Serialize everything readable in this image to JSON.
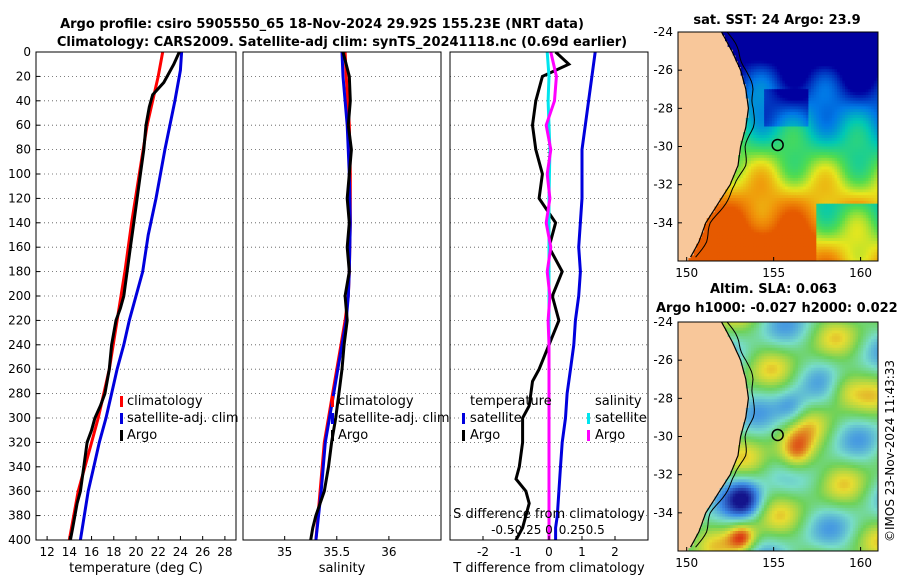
{
  "header": {
    "title_line1": "Argo profile: csiro 5905550_65 18-Nov-2024 29.92S 155.23E (NRT data)",
    "title_line2": "Climatology: CARS2009. Satellite-adj clim: synTS_20241118.nc (0.69d earlier)"
  },
  "colors": {
    "climatology": "#ff0000",
    "satellite": "#0000dd",
    "argo": "#000000",
    "salinity_satellite": "#00e5ee",
    "salinity_argo": "#ff00ff",
    "land": "#f8c79a"
  },
  "chart_data": [
    {
      "id": "temperature",
      "type": "line",
      "xlabel": "temperature (deg C)",
      "ylabel": "",
      "xlim": [
        11,
        29
      ],
      "ylim": [
        400,
        0
      ],
      "xticks": [
        12,
        14,
        16,
        18,
        20,
        22,
        24,
        26,
        28
      ],
      "yticks": [
        0,
        20,
        40,
        60,
        80,
        100,
        120,
        140,
        160,
        180,
        200,
        220,
        240,
        260,
        280,
        300,
        320,
        340,
        360,
        380,
        400
      ],
      "legend": [
        "climatology",
        "satellite-adj. clim",
        "Argo"
      ],
      "legend_loc": "lower-right",
      "series": [
        {
          "name": "climatology",
          "color": "#ff0000",
          "x": [
            22.4,
            22.0,
            21.0,
            20.3,
            19.6,
            19.0,
            18.3,
            17.6,
            17.1,
            16.6,
            16.0,
            15.4,
            14.8,
            14.0
          ],
          "y": [
            0,
            20,
            60,
            100,
            140,
            180,
            220,
            260,
            280,
            300,
            320,
            340,
            360,
            400
          ]
        },
        {
          "name": "satellite-adj. clim",
          "color": "#0000dd",
          "x": [
            24.1,
            24.0,
            23.5,
            22.6,
            21.8,
            21.1,
            20.6,
            20.0,
            19.4,
            18.9,
            18.3,
            17.8,
            17.3,
            16.7,
            16.2,
            15.7,
            15.0
          ],
          "y": [
            0,
            15,
            40,
            80,
            120,
            150,
            180,
            200,
            220,
            240,
            260,
            280,
            300,
            320,
            340,
            360,
            400
          ]
        },
        {
          "name": "Argo",
          "color": "#000000",
          "x": [
            23.9,
            23.4,
            22.5,
            21.5,
            21.2,
            20.9,
            20.7,
            20.4,
            20.1,
            19.8,
            19.5,
            19.2,
            18.9,
            18.6,
            18.2,
            17.8,
            17.6,
            17.2,
            16.8,
            16.3,
            16.0,
            15.6,
            15.3,
            15.0,
            14.7,
            14.3,
            14.1
          ],
          "y": [
            0,
            10,
            25,
            35,
            45,
            60,
            80,
            100,
            120,
            140,
            160,
            180,
            200,
            210,
            220,
            240,
            260,
            280,
            290,
            300,
            310,
            320,
            340,
            360,
            370,
            390,
            400
          ]
        }
      ]
    },
    {
      "id": "salinity",
      "type": "line",
      "xlabel": "salinity",
      "ylabel": "",
      "xlim": [
        34.6,
        36.5
      ],
      "ylim": [
        400,
        0
      ],
      "xticks": [
        35,
        35.5,
        36
      ],
      "xtick_labels": [
        "35",
        "35.5",
        "36"
      ],
      "legend": [
        "climatology",
        "satellite-adj. clim",
        "Argo"
      ],
      "legend_loc": "lower-right",
      "series": [
        {
          "name": "climatology",
          "color": "#ff0000",
          "x": [
            35.58,
            35.59,
            35.62,
            35.63,
            35.63,
            35.62,
            35.61,
            35.58,
            35.54,
            35.5,
            35.46,
            35.42,
            35.38,
            35.34,
            35.3
          ],
          "y": [
            0,
            20,
            60,
            100,
            140,
            180,
            200,
            220,
            240,
            260,
            280,
            300,
            320,
            360,
            400
          ]
        },
        {
          "name": "satellite-adj. clim",
          "color": "#0000dd",
          "x": [
            35.55,
            35.56,
            35.6,
            35.62,
            35.63,
            35.62,
            35.61,
            35.59,
            35.55,
            35.51,
            35.47,
            35.43,
            35.39,
            35.35,
            35.3
          ],
          "y": [
            0,
            20,
            60,
            100,
            140,
            180,
            200,
            220,
            240,
            260,
            280,
            300,
            320,
            360,
            400
          ]
        },
        {
          "name": "Argo",
          "color": "#000000",
          "x": [
            35.56,
            35.62,
            35.63,
            35.61,
            35.64,
            35.62,
            35.6,
            35.62,
            35.6,
            35.62,
            35.58,
            35.6,
            35.57,
            35.55,
            35.52,
            35.49,
            35.45,
            35.42,
            35.38,
            35.34,
            35.3,
            35.27,
            35.25
          ],
          "y": [
            0,
            20,
            40,
            60,
            80,
            100,
            120,
            140,
            160,
            180,
            200,
            220,
            240,
            260,
            280,
            300,
            320,
            340,
            360,
            370,
            380,
            390,
            400
          ]
        }
      ]
    },
    {
      "id": "difference",
      "type": "line",
      "xlabel": "T difference from climatology",
      "top_label": "S difference from climatology",
      "xlim": [
        -3,
        3
      ],
      "ylim": [
        400,
        0
      ],
      "xticks": [
        -2,
        -1,
        0,
        1,
        2
      ],
      "xtick_labels": [
        "-2",
        "-1",
        "0",
        "1",
        "2"
      ],
      "s_ticks": [
        -0.5,
        -0.25,
        0,
        0.25,
        0.5
      ],
      "s_tick_labels": [
        "-0.5",
        "-0.25",
        "0",
        "0.25",
        "0.5"
      ],
      "legend_temperature_title": "temperature",
      "legend_salinity_title": "salinity",
      "legend_left": [
        "satellite",
        "Argo"
      ],
      "legend_right": [
        "satellite",
        "Argo"
      ],
      "series": [
        {
          "name": "T satellite",
          "color": "#0000dd",
          "x": [
            1.4,
            1.3,
            1.2,
            1.0,
            1.0,
            0.9,
            0.95,
            0.9,
            0.8,
            0.75,
            0.65,
            0.55,
            0.5,
            0.4,
            0.35,
            0.3,
            0.25,
            0.2,
            0.2
          ],
          "y": [
            0,
            20,
            40,
            80,
            120,
            160,
            180,
            200,
            220,
            240,
            260,
            280,
            300,
            320,
            340,
            360,
            380,
            390,
            400
          ]
        },
        {
          "name": "T Argo",
          "color": "#000000",
          "x": [
            0.2,
            0.6,
            -0.2,
            -0.3,
            -0.4,
            -0.5,
            -0.4,
            -0.2,
            -0.3,
            0.2,
            0.0,
            0.4,
            0.1,
            0.3,
            0.0,
            -0.3,
            -0.5,
            -0.6,
            -0.8,
            -0.8,
            -0.9,
            -1.0,
            -0.7,
            -0.6,
            -0.8,
            -1.0
          ],
          "y": [
            0,
            10,
            20,
            30,
            40,
            60,
            80,
            100,
            120,
            140,
            160,
            180,
            200,
            220,
            240,
            260,
            270,
            290,
            300,
            320,
            340,
            350,
            360,
            370,
            390,
            400
          ]
        },
        {
          "name": "S satellite",
          "color": "#00e5ee",
          "x": [
            -0.02,
            0.0,
            -0.01,
            0.01,
            0.0,
            0.0,
            0.0,
            0.0
          ],
          "y": [
            0,
            20,
            40,
            80,
            120,
            200,
            280,
            400
          ]
        },
        {
          "name": "S Argo",
          "color": "#ff00ff",
          "x": [
            0.02,
            0.08,
            0.06,
            -0.03,
            0.02,
            -0.02,
            0.01,
            -0.03,
            0.02,
            -0.02,
            0.01,
            -0.01,
            0.0,
            0.0
          ],
          "y": [
            0,
            20,
            40,
            60,
            80,
            100,
            120,
            140,
            160,
            180,
            200,
            220,
            240,
            400
          ]
        }
      ]
    },
    {
      "id": "sst_map",
      "type": "heatmap",
      "title": "sat. SST: 24 Argo: 23.9",
      "xlim": [
        149.5,
        161
      ],
      "ylim": [
        -36,
        -24
      ],
      "xticks": [
        150,
        155,
        160
      ],
      "xtick_labels": [
        "150",
        "155",
        "160"
      ],
      "yticks": [
        -24,
        -26,
        -28,
        -30,
        -32,
        -34
      ],
      "ytick_labels": [
        "-24",
        "-26",
        "-28",
        "-30",
        "-32",
        "-34"
      ],
      "marker": {
        "lon": 155.23,
        "lat": -29.92
      }
    },
    {
      "id": "sla_map",
      "type": "heatmap",
      "title_line1": "Altim. SLA: 0.063",
      "title_line2": "Argo h1000: -0.027 h2000: 0.022",
      "xlim": [
        149.5,
        161
      ],
      "ylim": [
        -36,
        -24
      ],
      "xticks": [
        150,
        155,
        160
      ],
      "xtick_labels": [
        "150",
        "155",
        "160"
      ],
      "yticks": [
        -24,
        -26,
        -28,
        -30,
        -32,
        -34
      ],
      "ytick_labels": [
        "-24",
        "-26",
        "-28",
        "-30",
        "-32",
        "-34"
      ],
      "marker": {
        "lon": 155.23,
        "lat": -29.92
      }
    }
  ],
  "watermark": "©IMOS 23-Nov-2024 11:43:33"
}
